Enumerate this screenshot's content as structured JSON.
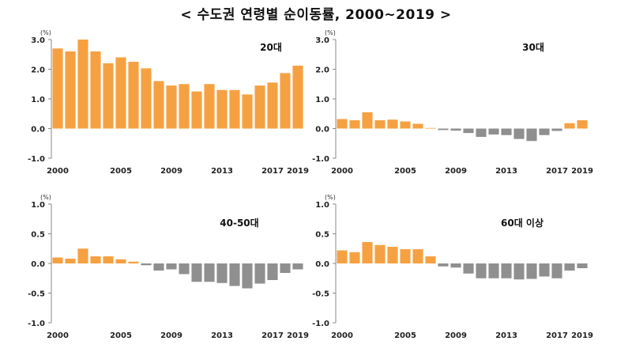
{
  "title": "< 수도권 연령별 순이동률, 2000~2019 >",
  "chart_data": [
    {
      "type": "bar",
      "title": "20대",
      "unit": "(%)",
      "ylim": [
        -1.0,
        3.0
      ],
      "yticks": [
        "3.0",
        "2.0",
        "1.0",
        "0.0",
        "-1.0"
      ],
      "ytick_values": [
        3.0,
        2.0,
        1.0,
        0.0,
        -1.0
      ],
      "xtick_labels": [
        "2000",
        "2005",
        "2009",
        "2013",
        "2017",
        "2019"
      ],
      "xtick_years": [
        2000,
        2005,
        2009,
        2013,
        2017,
        2019
      ],
      "categories": [
        2000,
        2001,
        2002,
        2003,
        2004,
        2005,
        2006,
        2007,
        2008,
        2009,
        2010,
        2011,
        2012,
        2013,
        2014,
        2015,
        2016,
        2017,
        2018,
        2019
      ],
      "values": [
        2.7,
        2.6,
        3.0,
        2.6,
        2.2,
        2.4,
        2.25,
        2.03,
        1.6,
        1.45,
        1.5,
        1.25,
        1.5,
        1.3,
        1.3,
        1.15,
        1.45,
        1.55,
        1.87,
        2.12
      ]
    },
    {
      "type": "bar",
      "title": "30대",
      "unit": "(%)",
      "ylim": [
        -1.0,
        3.0
      ],
      "yticks": [
        "3.0",
        "2.0",
        "1.0",
        "0.0",
        "-1.0"
      ],
      "ytick_values": [
        3.0,
        2.0,
        1.0,
        0.0,
        -1.0
      ],
      "xtick_labels": [
        "2000",
        "2005",
        "2009",
        "2013",
        "2017",
        "2019"
      ],
      "xtick_years": [
        2000,
        2005,
        2009,
        2013,
        2017,
        2019
      ],
      "categories": [
        2000,
        2001,
        2002,
        2003,
        2004,
        2005,
        2006,
        2007,
        2008,
        2009,
        2010,
        2011,
        2012,
        2013,
        2014,
        2015,
        2016,
        2017,
        2018,
        2019
      ],
      "values": [
        0.32,
        0.28,
        0.55,
        0.28,
        0.3,
        0.24,
        0.16,
        0.02,
        -0.05,
        -0.07,
        -0.15,
        -0.28,
        -0.2,
        -0.22,
        -0.35,
        -0.42,
        -0.22,
        -0.08,
        0.18,
        0.28
      ]
    },
    {
      "type": "bar",
      "title": "40-50대",
      "unit": "(%)",
      "ylim": [
        -1.0,
        1.0
      ],
      "yticks": [
        "1.0",
        "0.5",
        "0.0",
        "-0.5",
        "-1.0"
      ],
      "ytick_values": [
        1.0,
        0.5,
        0.0,
        -0.5,
        -1.0
      ],
      "xtick_labels": [
        "2000",
        "2005",
        "2009",
        "2013",
        "2017",
        "2019"
      ],
      "xtick_years": [
        2000,
        2005,
        2009,
        2013,
        2017,
        2019
      ],
      "categories": [
        2000,
        2001,
        2002,
        2003,
        2004,
        2005,
        2006,
        2007,
        2008,
        2009,
        2010,
        2011,
        2012,
        2013,
        2014,
        2015,
        2016,
        2017,
        2018,
        2019
      ],
      "values": [
        0.1,
        0.08,
        0.25,
        0.12,
        0.12,
        0.07,
        0.03,
        -0.03,
        -0.12,
        -0.1,
        -0.18,
        -0.31,
        -0.31,
        -0.33,
        -0.38,
        -0.42,
        -0.34,
        -0.28,
        -0.16,
        -0.1
      ]
    },
    {
      "type": "bar",
      "title": "60대 이상",
      "unit": "(%)",
      "ylim": [
        -1.0,
        1.0
      ],
      "yticks": [
        "1.0",
        "0.5",
        "0.0",
        "-0.5",
        "-1.0"
      ],
      "ytick_values": [
        1.0,
        0.5,
        0.0,
        -0.5,
        -1.0
      ],
      "xtick_labels": [
        "2000",
        "2005",
        "2009",
        "2013",
        "2017",
        "2019"
      ],
      "xtick_years": [
        2000,
        2005,
        2009,
        2013,
        2017,
        2019
      ],
      "categories": [
        2000,
        2001,
        2002,
        2003,
        2004,
        2005,
        2006,
        2007,
        2008,
        2009,
        2010,
        2011,
        2012,
        2013,
        2014,
        2015,
        2016,
        2017,
        2018,
        2019
      ],
      "values": [
        0.22,
        0.19,
        0.36,
        0.31,
        0.28,
        0.24,
        0.24,
        0.12,
        -0.05,
        -0.07,
        -0.17,
        -0.25,
        -0.25,
        -0.25,
        -0.27,
        -0.26,
        -0.22,
        -0.25,
        -0.12,
        -0.08
      ]
    }
  ],
  "colors": {
    "positive": "#F5A142",
    "negative": "#8F8F8F",
    "axis": "#888888"
  }
}
